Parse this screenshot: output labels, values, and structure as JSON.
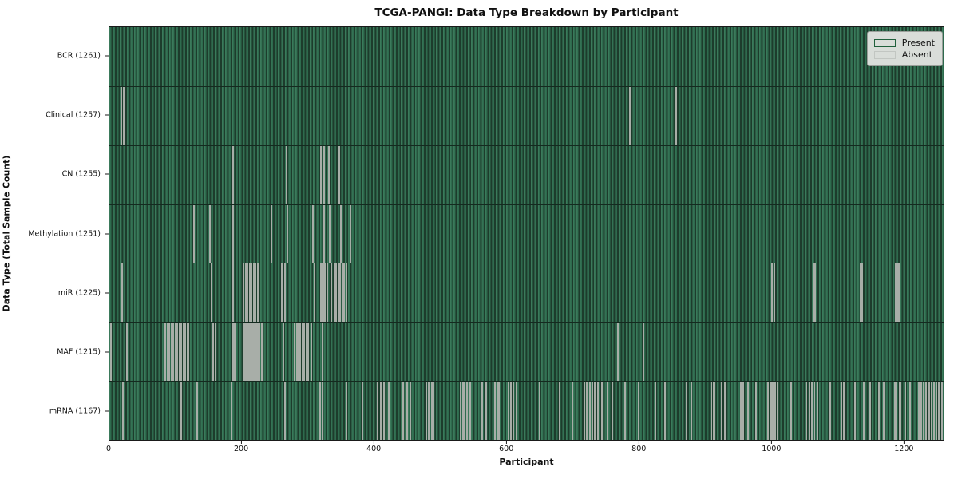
{
  "figure": {
    "background": "#ffffff",
    "title": "TCGA-PANGI: Data Type Breakdown by Participant"
  },
  "legend": {
    "present_label": "Present",
    "absent_label": "Absent",
    "present_color": "#2e8b57",
    "absent_color": "#ffffff",
    "position": "upper right",
    "background": "#d9ddd9"
  },
  "colors": {
    "present_fill": "#2e8b57",
    "present_rendered_texture": "#2e6b4e",
    "bar_edge": "#1d3c2c",
    "absent_stripe": "#a8aea8",
    "axis": "#1a1a1a",
    "text": "#111111"
  },
  "chart_data": {
    "type": "heatmap",
    "title": "TCGA-PANGI: Data Type Breakdown by Participant",
    "xlabel": "Participant",
    "ylabel": "Data Type (Total Sample Count)",
    "legend_entries": [
      "Present",
      "Absent"
    ],
    "legend_position": "upper right",
    "grid": false,
    "n_participants": 1261,
    "xlim": [
      0,
      1261
    ],
    "x_ticks": [
      0,
      200,
      400,
      600,
      800,
      1000,
      1200
    ],
    "cell_states": {
      "present": "#2e8b57",
      "absent": "#ffffff"
    },
    "rows": [
      {
        "name": "BCR",
        "total_sample_count": 1261,
        "label": "BCR (1261)",
        "absent_participants": []
      },
      {
        "name": "Clinical",
        "total_sample_count": 1257,
        "label": "Clinical (1257)",
        "absent_participants": [
          18,
          22,
          787,
          857
        ]
      },
      {
        "name": "CN",
        "total_sample_count": 1255,
        "label": "CN (1255)",
        "absent_participants": [
          187,
          268,
          320,
          324,
          332,
          348
        ]
      },
      {
        "name": "Methylation",
        "total_sample_count": 1251,
        "label": "Methylation (1251)",
        "absent_participants": [
          128,
          152,
          187,
          245,
          269,
          308,
          324,
          333,
          350,
          365
        ]
      },
      {
        "name": "miR",
        "total_sample_count": 1225,
        "label": "miR (1225)",
        "absent_participants": [
          19,
          154,
          187,
          203,
          206,
          209,
          212,
          215,
          218,
          221,
          224,
          261,
          266,
          310,
          320,
          322,
          324,
          326,
          330,
          335,
          340,
          343,
          346,
          349,
          352,
          355,
          358,
          1002,
          1005,
          1064,
          1067,
          1135,
          1138,
          1189,
          1191,
          1193
        ]
      },
      {
        "name": "MAF",
        "total_sample_count": 1215,
        "label": "MAF (1215)",
        "absent_participants": [
          3,
          26,
          85,
          88,
          91,
          94,
          97,
          100,
          103,
          106,
          109,
          112,
          115,
          118,
          120,
          157,
          160,
          187,
          190,
          203,
          205,
          207,
          209,
          211,
          213,
          215,
          217,
          219,
          221,
          223,
          225,
          227,
          230,
          263,
          280,
          283,
          286,
          289,
          292,
          295,
          298,
          301,
          305,
          322,
          769,
          807
        ]
      },
      {
        "name": "mRNA",
        "total_sample_count": 1167,
        "label": "mRNA (1167)",
        "absent_participants": [
          20,
          109,
          133,
          185,
          265,
          318,
          322,
          358,
          382,
          406,
          410,
          415,
          422,
          444,
          450,
          455,
          479,
          483,
          487,
          490,
          531,
          534,
          537,
          541,
          545,
          563,
          570,
          583,
          586,
          589,
          603,
          607,
          611,
          615,
          650,
          680,
          700,
          718,
          722,
          726,
          730,
          734,
          738,
          745,
          753,
          760,
          780,
          800,
          825,
          840,
          873,
          880,
          910,
          913,
          925,
          930,
          954,
          958,
          965,
          978,
          996,
          1000,
          1003,
          1006,
          1010,
          1030,
          1054,
          1058,
          1062,
          1066,
          1070,
          1090,
          1106,
          1110,
          1127,
          1140,
          1150,
          1163,
          1170,
          1187,
          1190,
          1195,
          1203,
          1210,
          1223,
          1227,
          1231,
          1235,
          1239,
          1243,
          1247,
          1250,
          1254,
          1258
        ]
      }
    ]
  }
}
